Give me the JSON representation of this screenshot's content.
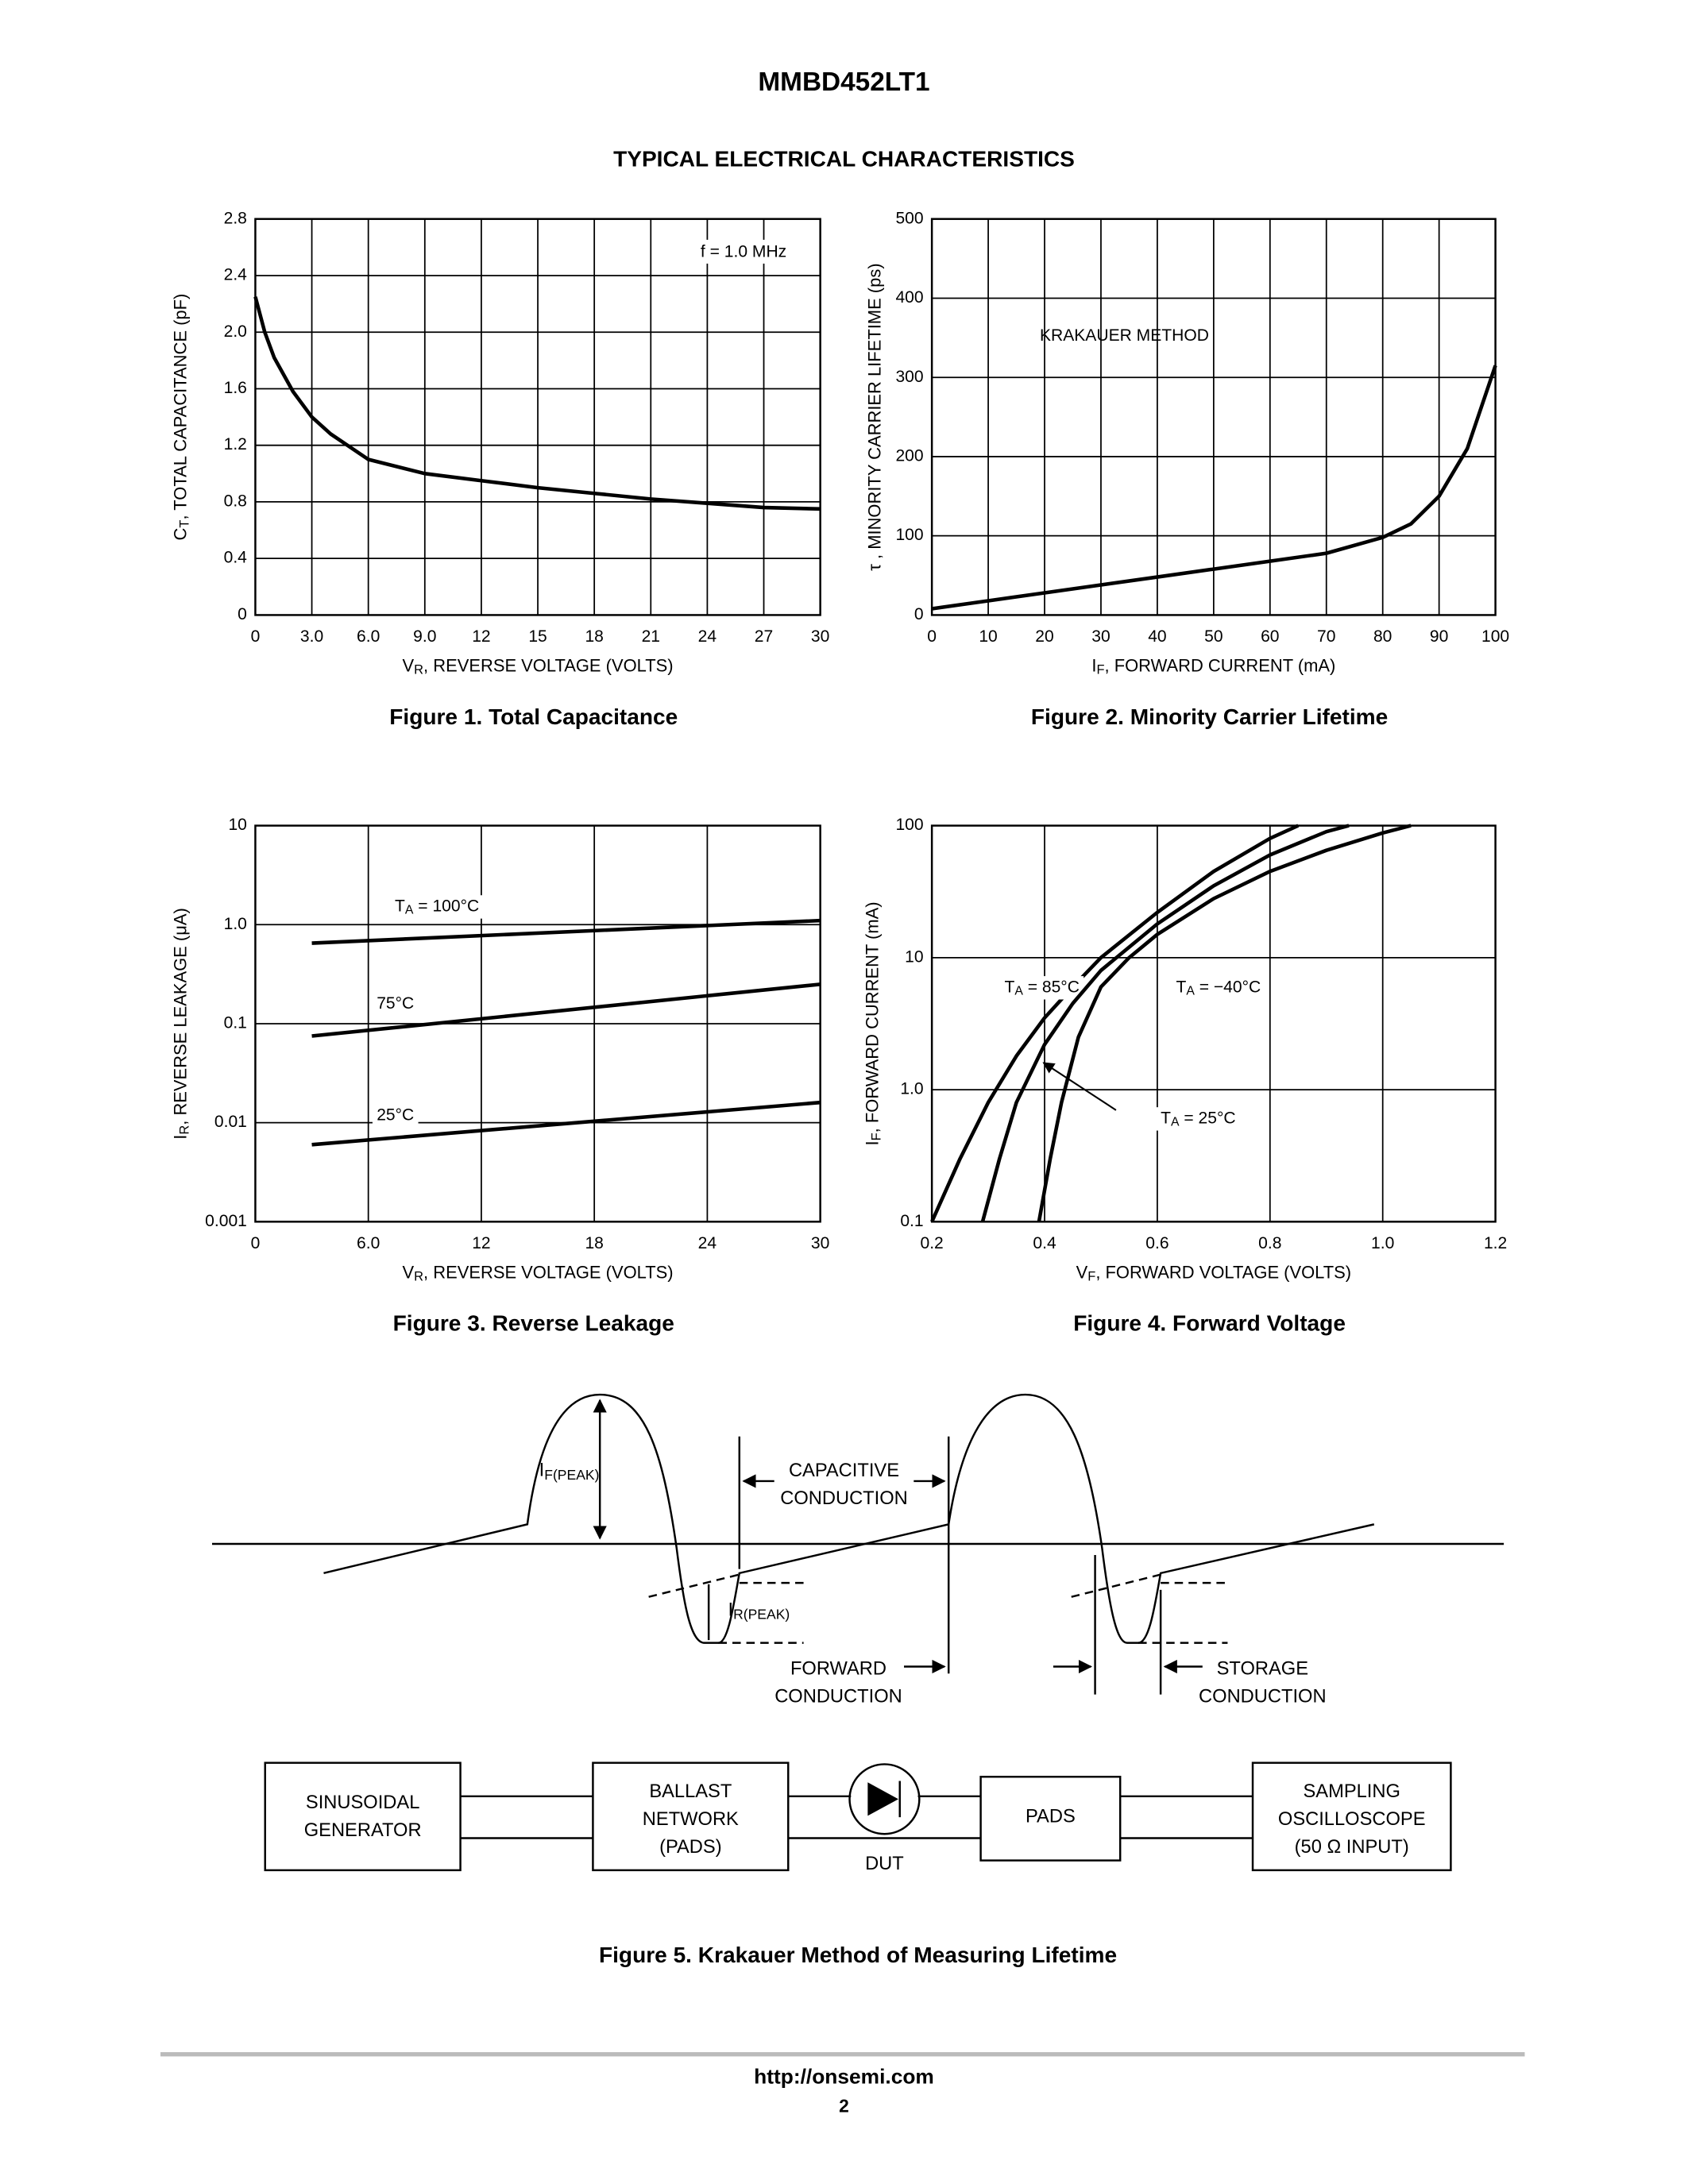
{
  "header": {
    "title": "MMBD452LT1",
    "subtitle": "TYPICAL ELECTRICAL CHARACTERISTICS"
  },
  "chart_data": [
    {
      "type": "line",
      "caption": "Figure 1. Total Capacitance",
      "annotation": "f = 1.0 MHz",
      "xlabel": [
        "V",
        "R",
        ", REVERSE VOLTAGE (VOLTS)"
      ],
      "ylabel": [
        "C",
        "T",
        ", TOTAL CAPACITANCE (pF)"
      ],
      "xlim": [
        0,
        30
      ],
      "ylim": [
        0,
        2.8
      ],
      "xticks": [
        0,
        {
          "value": 3,
          "label": "3.0"
        },
        {
          "value": 6,
          "label": "6.0"
        },
        {
          "value": 9,
          "label": "9.0"
        },
        12,
        15,
        18,
        21,
        24,
        27,
        30
      ],
      "yticks": [
        0,
        0.4,
        0.8,
        1.2,
        1.6,
        {
          "value": 2,
          "label": "2.0"
        },
        2.4,
        2.8
      ],
      "grid": true,
      "color": "#000000",
      "x": [
        0,
        0.5,
        1,
        2,
        3,
        4,
        6,
        9,
        12,
        15,
        18,
        21,
        24,
        27,
        30
      ],
      "values": [
        2.25,
        2.0,
        1.82,
        1.58,
        1.4,
        1.28,
        1.1,
        1.0,
        0.95,
        0.9,
        0.86,
        0.82,
        0.79,
        0.76,
        0.75
      ]
    },
    {
      "type": "line",
      "caption": "Figure 2. Minority Carrier Lifetime",
      "annotation": "KRAKAUER METHOD",
      "xlabel": [
        "I",
        "F",
        ", FORWARD CURRENT (mA)"
      ],
      "ylabel": "τ , MINORITY CARRIER LIFETIME (ps)",
      "xlim": [
        0,
        100
      ],
      "ylim": [
        0,
        500
      ],
      "xticks": [
        0,
        10,
        20,
        30,
        40,
        50,
        60,
        70,
        80,
        90,
        100
      ],
      "yticks": [
        0,
        100,
        200,
        300,
        400,
        500
      ],
      "grid": true,
      "color": "#000000",
      "x": [
        0,
        10,
        20,
        30,
        40,
        50,
        60,
        70,
        80,
        85,
        90,
        95,
        100
      ],
      "values": [
        8,
        18,
        28,
        38,
        48,
        58,
        68,
        78,
        98,
        115,
        150,
        210,
        315
      ]
    },
    {
      "type": "line",
      "caption": "Figure 3. Reverse Leakage",
      "xlabel": [
        "V",
        "R",
        ", REVERSE VOLTAGE (VOLTS)"
      ],
      "ylabel": [
        "I",
        "R",
        ", REVERSE LEAKAGE (μA)"
      ],
      "xlim": [
        0,
        30
      ],
      "ylim": [
        0.001,
        10
      ],
      "log_y": true,
      "xticks": [
        0,
        {
          "value": 6,
          "label": "6.0"
        },
        12,
        18,
        24,
        30
      ],
      "yticks": [
        0.001,
        0.01,
        0.1,
        {
          "value": 1,
          "label": "1.0"
        },
        10
      ],
      "grid": true,
      "series": [
        {
          "name": [
            "T",
            "A",
            " = 100°C"
          ],
          "color": "#000000",
          "x": [
            3,
            30
          ],
          "values": [
            0.65,
            1.1
          ]
        },
        {
          "name": "75°C",
          "color": "#000000",
          "x": [
            3,
            30
          ],
          "values": [
            0.075,
            0.25
          ]
        },
        {
          "name": "25°C",
          "color": "#000000",
          "x": [
            3,
            30
          ],
          "values": [
            0.006,
            0.016
          ]
        }
      ]
    },
    {
      "type": "line",
      "caption": "Figure 4. Forward Voltage",
      "xlabel": [
        "V",
        "F",
        ", FORWARD VOLTAGE (VOLTS)"
      ],
      "ylabel": [
        "I",
        "F",
        ", FORWARD CURRENT (mA)"
      ],
      "xlim": [
        0.2,
        1.2
      ],
      "ylim": [
        0.1,
        100
      ],
      "log_y": true,
      "xticks": [
        0.2,
        0.4,
        0.6,
        0.8,
        {
          "value": 1,
          "label": "1.0"
        },
        1.2
      ],
      "yticks": [
        0.1,
        {
          "value": 1,
          "label": "1.0"
        },
        10,
        100
      ],
      "grid": true,
      "series": [
        {
          "name": [
            "T",
            "A",
            " = 85°C"
          ],
          "color": "#000000",
          "x": [
            0.2,
            0.25,
            0.3,
            0.35,
            0.4,
            0.45,
            0.5,
            0.6,
            0.7,
            0.8,
            0.85
          ],
          "values": [
            0.1,
            0.3,
            0.8,
            1.8,
            3.5,
            6,
            10,
            22,
            45,
            80,
            100
          ]
        },
        {
          "name": [
            "T",
            "A",
            " = 25°C"
          ],
          "color": "#000000",
          "x": [
            0.29,
            0.32,
            0.35,
            0.4,
            0.45,
            0.5,
            0.6,
            0.7,
            0.8,
            0.9,
            0.94
          ],
          "values": [
            0.1,
            0.3,
            0.8,
            2.2,
            4.5,
            8,
            18,
            35,
            60,
            90,
            100
          ]
        },
        {
          "name": [
            "T",
            "A",
            " = −40°C"
          ],
          "color": "#000000",
          "x": [
            0.39,
            0.41,
            0.43,
            0.46,
            0.5,
            0.55,
            0.6,
            0.7,
            0.8,
            0.9,
            1.0,
            1.05
          ],
          "values": [
            0.1,
            0.3,
            0.8,
            2.5,
            6,
            10,
            15,
            28,
            45,
            65,
            88,
            100
          ]
        }
      ]
    }
  ],
  "figure5": {
    "caption": "Figure 5. Krakauer Method of Measuring Lifetime",
    "if_peak": [
      "I",
      "F(PEAK)"
    ],
    "capacitive": [
      "CAPACITIVE",
      "CONDUCTION"
    ],
    "ir_peak": [
      "I",
      "R(PEAK)"
    ],
    "forward": [
      "FORWARD",
      "CONDUCTION"
    ],
    "storage": [
      "STORAGE",
      "CONDUCTION"
    ],
    "generator": [
      "SINUSOIDAL",
      "GENERATOR"
    ],
    "ballast": [
      "BALLAST",
      "NETWORK",
      "(PADS)"
    ],
    "dut": "DUT",
    "pads": "PADS",
    "scope": [
      "SAMPLING",
      "OSCILLOSCOPE",
      "(50 Ω INPUT)"
    ]
  },
  "footer": {
    "url": "http://onsemi.com",
    "page": "2"
  }
}
